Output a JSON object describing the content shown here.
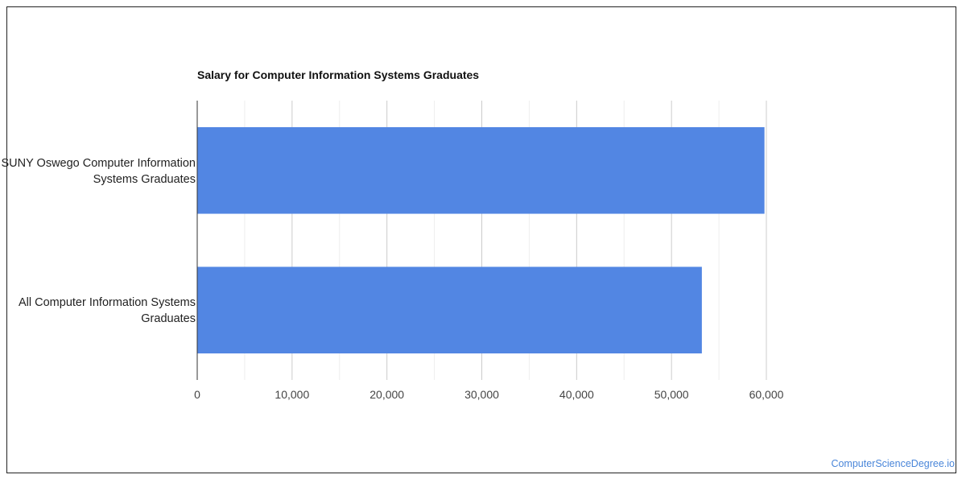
{
  "chart_data": {
    "type": "bar",
    "orientation": "horizontal",
    "title": "Salary for Computer Information Systems Graduates",
    "categories": [
      "SUNY Oswego Computer Information Systems Graduates",
      "All Computer Information Systems Graduates"
    ],
    "values": [
      59800,
      53200
    ],
    "xlabel": "",
    "ylabel": "",
    "xlim": [
      0,
      60000
    ],
    "tick_values": [
      0,
      10000,
      20000,
      30000,
      40000,
      50000,
      60000
    ],
    "tick_labels": [
      "0",
      "10,000",
      "20,000",
      "30,000",
      "40,000",
      "50,000",
      "60,000"
    ],
    "grid": true,
    "bar_color": "#5286e3"
  },
  "watermark": "ComputerScienceDegree.io"
}
